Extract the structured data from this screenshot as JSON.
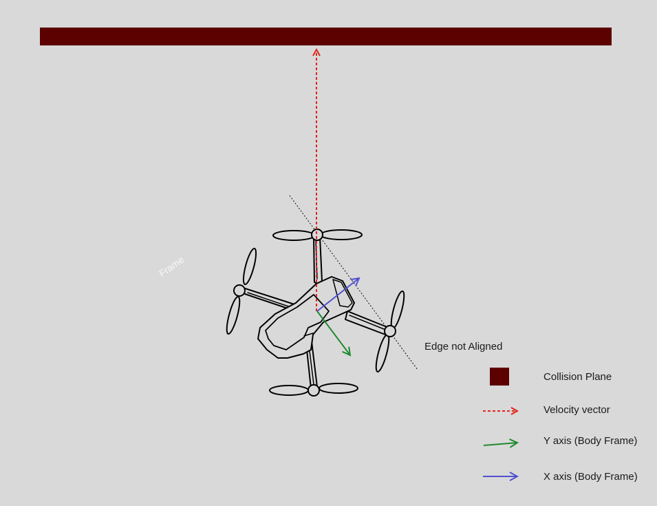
{
  "colors": {
    "background": "#d9d9d9",
    "collision_plane": "#5c0000",
    "velocity": "#e2231a",
    "y_axis": "#1e8a2e",
    "x_axis": "#5050d0",
    "outline": "#000000"
  },
  "annotations": {
    "edge_label": "Edge not Aligned",
    "watermark": "Frame"
  },
  "legend": {
    "items": [
      {
        "key": "collision-plane",
        "label": "Collision Plane",
        "symbol": "square-swatch"
      },
      {
        "key": "velocity-vector",
        "label": "Velocity vector",
        "symbol": "dashed-arrow"
      },
      {
        "key": "y-axis",
        "label": "Y axis (Body Frame)",
        "symbol": "solid-arrow"
      },
      {
        "key": "x-axis",
        "label": "X axis (Body Frame)",
        "symbol": "solid-arrow"
      }
    ]
  },
  "icons": [
    "quadcopter-drone-icon",
    "arrow-icon"
  ]
}
